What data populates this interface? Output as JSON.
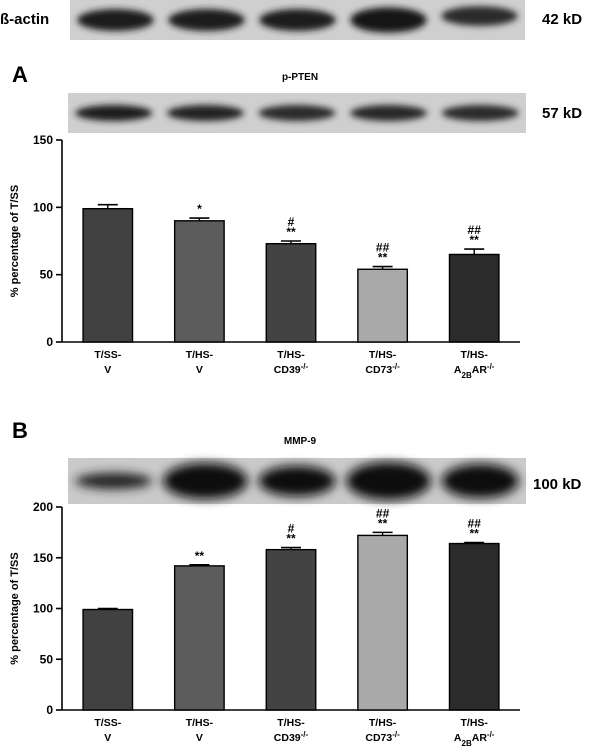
{
  "blots": {
    "actin": {
      "label": "ß-actin",
      "kd": "42 kD"
    },
    "pten": {
      "kd": "57 kD"
    },
    "mmp9": {
      "kd": "100 kD"
    }
  },
  "panels": {
    "a": "A",
    "b": "B"
  },
  "chart_data": [
    {
      "type": "bar",
      "title": "p-PTEN",
      "ylabel": "% percentage of T/SS",
      "ylim": [
        0,
        150
      ],
      "yticks": [
        0,
        50,
        100,
        150
      ],
      "categories": [
        {
          "line1": "T/SS-",
          "line2": "V"
        },
        {
          "line1": "T/HS-",
          "line2": "V"
        },
        {
          "line1": "T/HS-",
          "line2": "CD39-/-"
        },
        {
          "line1": "T/HS-",
          "line2": "CD73-/-"
        },
        {
          "line1": "T/HS-",
          "line2": "A2BAR-/-"
        }
      ],
      "values": [
        99,
        90,
        73,
        54,
        65
      ],
      "errors": [
        3,
        2,
        2,
        2,
        4
      ],
      "colors": [
        "#414141",
        "#5c5c5c",
        "#434343",
        "#a9a9a9",
        "#2b2b2b"
      ],
      "significance": [
        {
          "top": "",
          "bottom": ""
        },
        {
          "top": "",
          "bottom": "*"
        },
        {
          "top": "#",
          "bottom": "**"
        },
        {
          "top": "##",
          "bottom": "**"
        },
        {
          "top": "##",
          "bottom": "**"
        }
      ]
    },
    {
      "type": "bar",
      "title": "MMP-9",
      "ylabel": "% percentage of T/SS",
      "ylim": [
        0,
        200
      ],
      "yticks": [
        0,
        50,
        100,
        150,
        200
      ],
      "categories": [
        {
          "line1": "T/SS-",
          "line2": "V"
        },
        {
          "line1": "T/HS-",
          "line2": "V"
        },
        {
          "line1": "T/HS-",
          "line2": "CD39-/-"
        },
        {
          "line1": "T/HS-",
          "line2": "CD73-/-"
        },
        {
          "line1": "T/HS-",
          "line2": "A2BAR-/-"
        }
      ],
      "values": [
        99,
        142,
        158,
        172,
        164
      ],
      "errors": [
        1,
        1,
        2,
        3,
        1
      ],
      "colors": [
        "#414141",
        "#5c5c5c",
        "#434343",
        "#a9a9a9",
        "#2b2b2b"
      ],
      "significance": [
        {
          "top": "",
          "bottom": ""
        },
        {
          "top": "",
          "bottom": "**"
        },
        {
          "top": "#",
          "bottom": "**"
        },
        {
          "top": "##",
          "bottom": "**"
        },
        {
          "top": "##",
          "bottom": "**"
        }
      ]
    }
  ]
}
